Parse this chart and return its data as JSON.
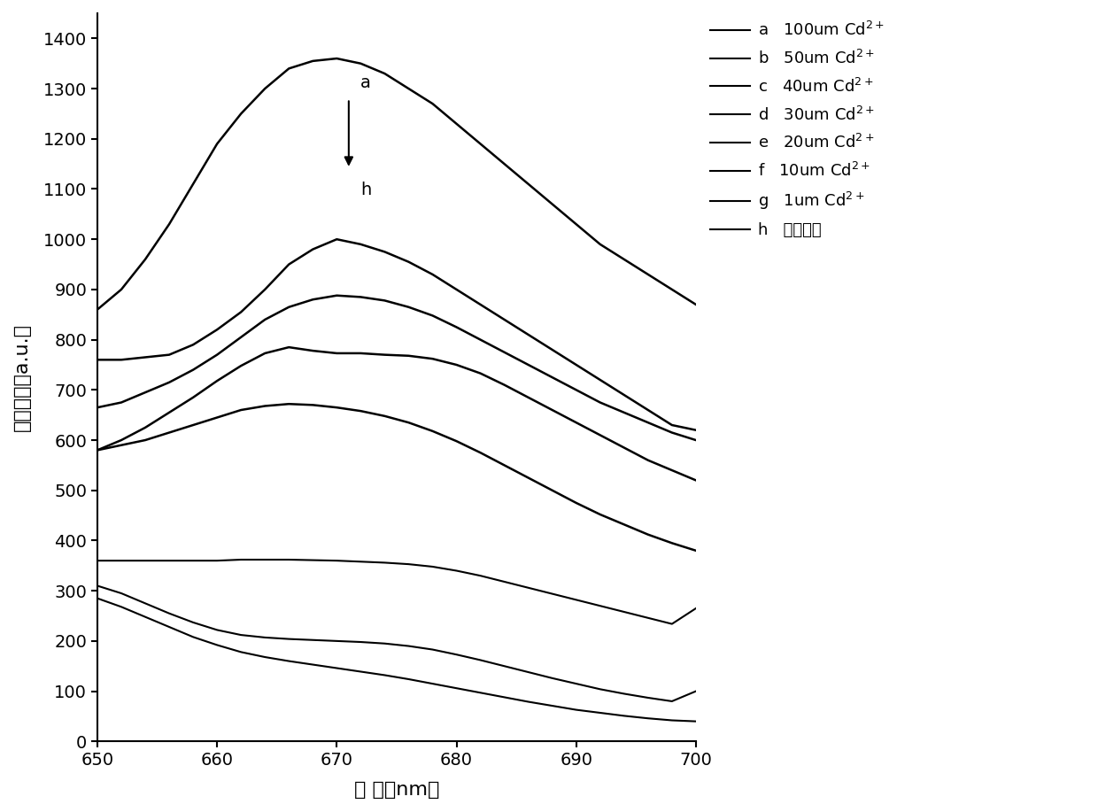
{
  "x": [
    650,
    652,
    654,
    656,
    658,
    660,
    662,
    664,
    666,
    668,
    670,
    672,
    674,
    676,
    678,
    680,
    682,
    684,
    686,
    688,
    690,
    692,
    694,
    696,
    698,
    700
  ],
  "curves": {
    "a": [
      860,
      900,
      960,
      1030,
      1110,
      1190,
      1250,
      1300,
      1340,
      1355,
      1360,
      1350,
      1330,
      1300,
      1270,
      1230,
      1190,
      1150,
      1110,
      1070,
      1030,
      990,
      960,
      930,
      900,
      870
    ],
    "b": [
      760,
      760,
      765,
      770,
      790,
      820,
      855,
      900,
      950,
      980,
      1000,
      990,
      975,
      955,
      930,
      900,
      870,
      840,
      810,
      780,
      750,
      720,
      690,
      660,
      630,
      620
    ],
    "c": [
      665,
      675,
      695,
      715,
      740,
      770,
      805,
      840,
      865,
      880,
      888,
      885,
      878,
      865,
      848,
      825,
      800,
      775,
      750,
      725,
      700,
      675,
      655,
      635,
      615,
      600
    ],
    "d": [
      580,
      600,
      625,
      655,
      685,
      718,
      748,
      773,
      785,
      778,
      773,
      773,
      770,
      768,
      762,
      750,
      733,
      710,
      685,
      660,
      635,
      610,
      585,
      560,
      540,
      520
    ],
    "e": [
      580,
      590,
      600,
      615,
      630,
      645,
      660,
      668,
      672,
      670,
      665,
      658,
      648,
      635,
      618,
      598,
      575,
      550,
      525,
      500,
      475,
      452,
      432,
      412,
      395,
      380
    ],
    "f": [
      360,
      360,
      360,
      360,
      360,
      360,
      362,
      362,
      362,
      361,
      360,
      358,
      356,
      353,
      348,
      340,
      330,
      318,
      306,
      294,
      282,
      270,
      258,
      246,
      234,
      265
    ],
    "g": [
      310,
      295,
      275,
      255,
      237,
      222,
      212,
      207,
      204,
      202,
      200,
      198,
      195,
      190,
      183,
      173,
      162,
      150,
      138,
      126,
      115,
      104,
      95,
      87,
      80,
      100
    ],
    "h": [
      285,
      268,
      248,
      228,
      208,
      192,
      178,
      168,
      160,
      153,
      146,
      139,
      132,
      124,
      115,
      106,
      97,
      88,
      79,
      71,
      63,
      57,
      51,
      46,
      42,
      40
    ]
  },
  "labels_letter": [
    "a",
    "b",
    "c",
    "d",
    "e",
    "f",
    "g",
    "h"
  ],
  "labels_text": [
    "100um Cd",
    "50um Cd",
    "40um Cd",
    "30um Cd",
    "20um Cd",
    "10um Cd",
    "1um Cd",
    "不加离子"
  ],
  "superscript": [
    "2+",
    "2+",
    "2+",
    "2+",
    "2+",
    "2+",
    "2+",
    ""
  ],
  "xlabel": "波 长（nm）",
  "ylabel": "荧光强度（a.u.）",
  "xlim": [
    650,
    700
  ],
  "ylim": [
    0,
    1450
  ],
  "yticks": [
    0,
    100,
    200,
    300,
    400,
    500,
    600,
    700,
    800,
    900,
    1000,
    1100,
    1200,
    1300,
    1400
  ],
  "xticks": [
    650,
    660,
    670,
    680,
    690,
    700
  ],
  "line_color": "#000000",
  "background_color": "#ffffff"
}
